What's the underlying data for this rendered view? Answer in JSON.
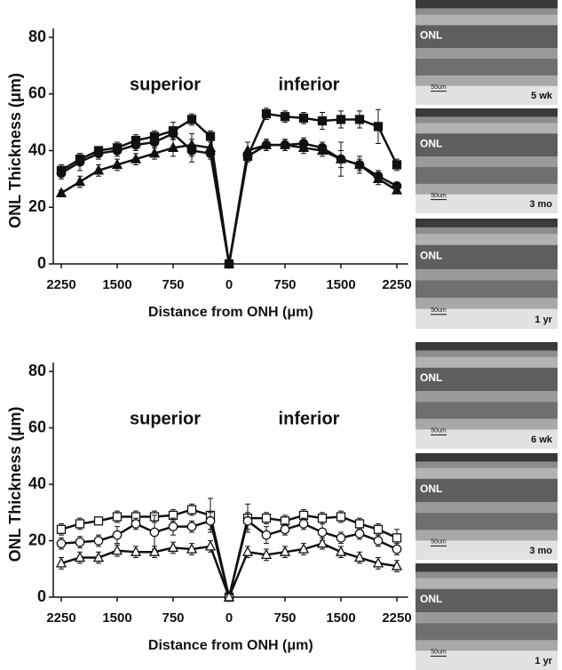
{
  "chart_data": [
    {
      "type": "line",
      "xlabel": "Distance from ONH (μm)",
      "ylabel": "ONL Thickness (μm)",
      "annotations": [
        "superior",
        "inferior"
      ],
      "x": [
        -2250,
        -2000,
        -1750,
        -1500,
        -1250,
        -1000,
        -750,
        -500,
        -250,
        0,
        250,
        500,
        750,
        1000,
        1250,
        1500,
        1750,
        2000,
        2250
      ],
      "xlim": [
        -2400,
        2400
      ],
      "xticks": [
        {
          "value": -2250,
          "label": "2250"
        },
        {
          "value": -1500,
          "label": "1500"
        },
        {
          "value": -750,
          "label": "750"
        },
        0,
        750,
        1500,
        2250
      ],
      "ylim": [
        0,
        80
      ],
      "yticks": [
        0,
        20,
        40,
        60,
        80
      ],
      "series": [
        {
          "color": "#111111",
          "marker": "square",
          "filled": true,
          "values": [
            33,
            37,
            40,
            41,
            43.6,
            45,
            47,
            51,
            45,
            0,
            38,
            53,
            52,
            51.5,
            50.5,
            51,
            51,
            48.5,
            35
          ],
          "errors": [
            2,
            2,
            1,
            2,
            2,
            2,
            3,
            2,
            2,
            0,
            2,
            2,
            2,
            2,
            3,
            3,
            3,
            6,
            2
          ]
        },
        {
          "color": "#111111",
          "marker": "circle",
          "filled": true,
          "values": [
            32,
            36,
            39,
            40,
            42,
            43,
            46,
            40,
            39,
            0,
            38,
            42,
            42,
            42.5,
            41,
            37,
            35,
            31,
            27.5
          ],
          "errors": [
            2,
            3,
            2,
            2,
            2,
            2,
            2,
            4,
            2,
            0,
            2,
            2,
            2,
            2,
            2,
            6,
            3,
            2,
            1
          ]
        },
        {
          "color": "#111111",
          "marker": "triangle",
          "filled": true,
          "values": [
            25,
            29,
            33,
            35,
            37,
            39,
            41,
            42,
            41,
            0,
            40,
            42,
            42,
            41,
            40,
            37,
            35,
            30,
            26
          ],
          "errors": [
            1,
            2,
            2,
            2,
            2,
            2,
            3,
            4,
            2,
            0,
            3,
            2,
            2,
            2,
            2,
            3,
            2,
            2,
            1
          ]
        }
      ],
      "images": [
        {
          "label": "ONL",
          "scale": "50um",
          "age": "5 wk"
        },
        {
          "label": "ONL",
          "scale": "50um",
          "age": "3 mo"
        },
        {
          "label": "ONL",
          "scale": "50um",
          "age": "1 yr"
        }
      ]
    },
    {
      "type": "line",
      "xlabel": "Distance from ONH (μm)",
      "ylabel": "ONL Thickness (μm)",
      "annotations": [
        "superior",
        "inferior"
      ],
      "x": [
        -2250,
        -2000,
        -1750,
        -1500,
        -1250,
        -1000,
        -750,
        -500,
        -250,
        0,
        250,
        500,
        750,
        1000,
        1250,
        1500,
        1750,
        2000,
        2250
      ],
      "xlim": [
        -2400,
        2400
      ],
      "xticks": [
        {
          "value": -2250,
          "label": "2250"
        },
        {
          "value": -1500,
          "label": "1500"
        },
        {
          "value": -750,
          "label": "750"
        },
        0,
        750,
        1500,
        2250
      ],
      "ylim": [
        0,
        80
      ],
      "yticks": [
        0,
        20,
        40,
        60,
        80
      ],
      "series": [
        {
          "color": "#111111",
          "marker": "square",
          "filled": false,
          "values": [
            24,
            26,
            27,
            28.5,
            28.5,
            28.5,
            29,
            31,
            29,
            0,
            28,
            28,
            27,
            29,
            28,
            28.5,
            26,
            24,
            21
          ],
          "errors": [
            2,
            2,
            1,
            2,
            2,
            2,
            2,
            2,
            6,
            0,
            5,
            2,
            2,
            2,
            2,
            2,
            2,
            2,
            3
          ]
        },
        {
          "color": "#111111",
          "marker": "circle",
          "filled": false,
          "values": [
            19,
            19.5,
            20,
            22,
            26,
            23,
            25,
            25,
            27,
            0,
            27,
            22,
            24,
            26,
            23,
            21,
            22.5,
            20,
            17
          ],
          "errors": [
            2,
            2,
            2,
            3,
            2,
            6,
            3,
            2,
            3,
            0,
            3,
            3,
            2,
            2,
            3,
            2,
            2,
            2,
            2
          ]
        },
        {
          "color": "#111111",
          "marker": "triangle",
          "filled": false,
          "values": [
            12,
            14,
            14,
            16.5,
            16,
            16,
            17.5,
            17,
            18,
            0,
            16,
            15,
            16,
            17,
            19,
            16,
            14,
            12,
            11
          ],
          "errors": [
            2,
            2,
            2,
            2,
            2,
            2,
            2,
            2,
            2,
            0,
            2,
            2,
            2,
            2,
            2,
            2,
            2,
            2,
            2
          ]
        }
      ],
      "images": [
        {
          "label": "ONL",
          "scale": "50um",
          "age": "6 wk"
        },
        {
          "label": "ONL",
          "scale": "50um",
          "age": "3 mo"
        },
        {
          "label": "ONL",
          "scale": "50um",
          "age": "1 yr"
        }
      ]
    }
  ]
}
